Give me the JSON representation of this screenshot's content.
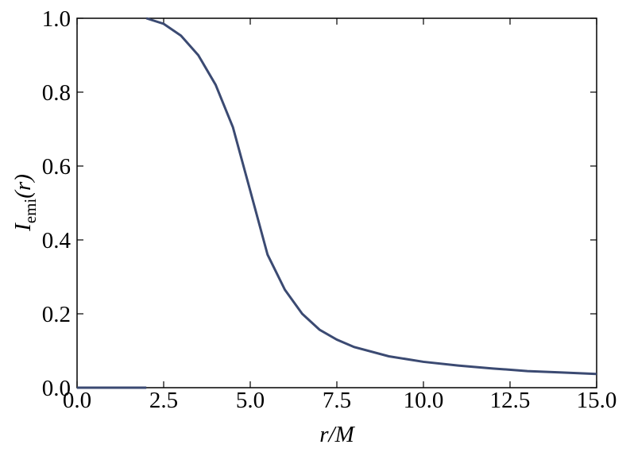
{
  "chart_data": {
    "type": "line",
    "xlabel": "r/M",
    "ylabel": {
      "symbol": "I",
      "subscript": "emi",
      "argument": "(r)"
    },
    "x": [
      0,
      2,
      2,
      2,
      2.5,
      3,
      3.5,
      4,
      4.5,
      5,
      5.5,
      6,
      6.5,
      7,
      7.5,
      8,
      9,
      10,
      11,
      12,
      13,
      14,
      15
    ],
    "series": [
      {
        "color": "#3b4a72",
        "values": [
          0,
          0,
          null,
          1.0,
          0.985,
          0.953,
          0.9,
          0.82,
          0.705,
          0.533,
          0.36,
          0.265,
          0.2,
          0.157,
          0.13,
          0.11,
          0.085,
          0.07,
          0.06,
          0.052,
          0.045,
          0.041,
          0.037
        ]
      }
    ],
    "xlim": [
      0,
      15
    ],
    "ylim": [
      0,
      1
    ],
    "xticks": [
      {
        "value": 0,
        "label": "0.0"
      },
      {
        "value": 2.5,
        "label": "2.5"
      },
      {
        "value": 5,
        "label": "5.0"
      },
      {
        "value": 7.5,
        "label": "7.5"
      },
      {
        "value": 10,
        "label": "10.0"
      },
      {
        "value": 12.5,
        "label": "12.5"
      },
      {
        "value": 15,
        "label": "15.0"
      }
    ],
    "yticks": [
      {
        "value": 0,
        "label": "0.0"
      },
      0.2,
      0.4,
      0.6,
      0.8,
      {
        "value": 1,
        "label": "1.0"
      }
    ]
  }
}
